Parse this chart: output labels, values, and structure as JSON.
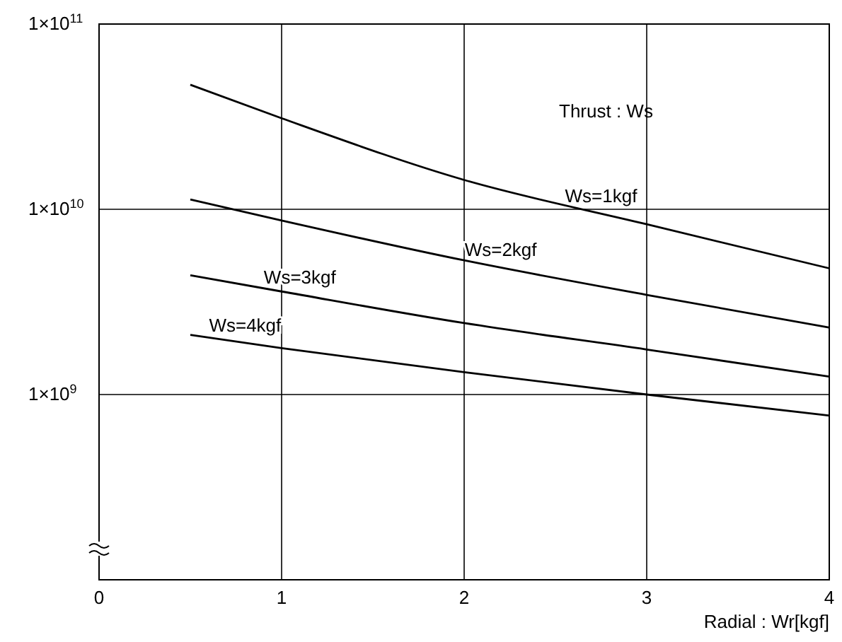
{
  "chart_data": {
    "type": "line",
    "xlabel": "Radial : Wr[kgf]",
    "annotations": [
      "Thrust : Ws"
    ],
    "x": [
      0.5,
      1,
      2,
      3,
      4
    ],
    "series": [
      {
        "name": "Ws=1kgf",
        "color": "#000000",
        "values": [
          47000000000.0,
          31000000000.0,
          14400000000.0,
          8300000000.0,
          4800000000.0
        ]
      },
      {
        "name": "Ws=2kgf",
        "color": "#000000",
        "values": [
          11300000000.0,
          8700000000.0,
          5300000000.0,
          3450000000.0,
          2300000000.0
        ]
      },
      {
        "name": "Ws=3kgf",
        "color": "#000000",
        "values": [
          4400000000.0,
          3600000000.0,
          2430000000.0,
          1750000000.0,
          1250000000.0
        ]
      },
      {
        "name": "Ws=4kgf",
        "color": "#000000",
        "values": [
          2100000000.0,
          1780000000.0,
          1320000000.0,
          1000000000.0,
          770000000.0
        ]
      }
    ],
    "xlim": [
      0,
      4
    ],
    "xticks": [
      0,
      1,
      2,
      3,
      4
    ],
    "ylim": [
      100000000.0,
      100000000000.0
    ],
    "log": true,
    "yticks": [
      {
        "value": 1000000000.0,
        "label": "1×10$^{9}$"
      },
      {
        "value": 10000000000.0,
        "label": "1×10$^{10}$"
      },
      {
        "value": 100000000000.0,
        "label": "1×10$^{11}$"
      }
    ],
    "grid": true,
    "marker": "none",
    "line_style": "solid"
  }
}
